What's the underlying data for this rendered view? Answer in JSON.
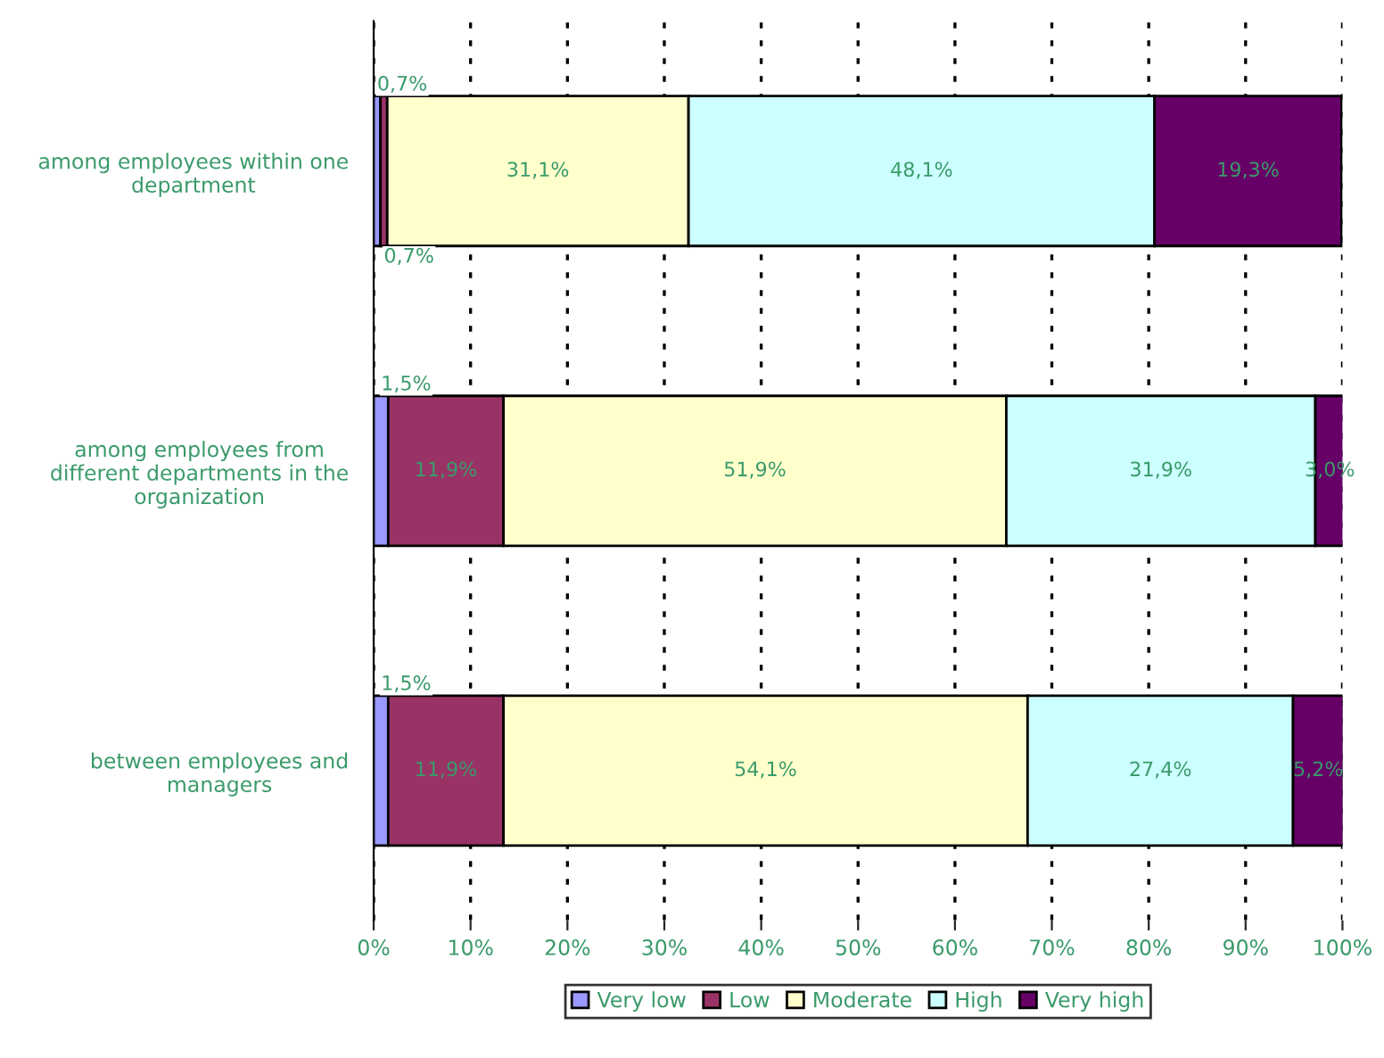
{
  "chart_data": {
    "type": "bar",
    "orientation": "horizontal",
    "stacked": true,
    "categories": [
      "among employees within one\ndepartment",
      "among employees from\ndifferent departments in the\norganization",
      "between employees and\nmanagers"
    ],
    "series": [
      {
        "name": "Very low",
        "color": "#9999ff",
        "values": [
          0.7,
          1.5,
          1.5
        ],
        "value_labels": [
          "0,7%",
          "1,5%",
          "1,5%"
        ]
      },
      {
        "name": "Low",
        "color": "#993366",
        "values": [
          0.7,
          11.9,
          11.9
        ],
        "value_labels": [
          "0,7%",
          "11,9%",
          "11,9%"
        ]
      },
      {
        "name": "Moderate",
        "color": "#ffffcc",
        "values": [
          31.1,
          51.9,
          54.1
        ],
        "value_labels": [
          "31,1%",
          "51,9%",
          "54,1%"
        ]
      },
      {
        "name": "High",
        "color": "#ccffff",
        "values": [
          48.1,
          31.9,
          27.4
        ],
        "value_labels": [
          "48,1%",
          "31,9%",
          "27,4%"
        ]
      },
      {
        "name": "Very high",
        "color": "#660066",
        "values": [
          19.3,
          3.0,
          5.2
        ],
        "value_labels": [
          "19,3%",
          "3,0%",
          "5,2%"
        ]
      }
    ],
    "xlim": [
      0,
      100
    ],
    "xticks": [
      {
        "value": 0,
        "label": "0%"
      },
      {
        "value": 10,
        "label": "10%"
      },
      {
        "value": 20,
        "label": "20%"
      },
      {
        "value": 30,
        "label": "30%"
      },
      {
        "value": 40,
        "label": "40%"
      },
      {
        "value": 50,
        "label": "50%"
      },
      {
        "value": 60,
        "label": "60%"
      },
      {
        "value": 70,
        "label": "70%"
      },
      {
        "value": 80,
        "label": "80%"
      },
      {
        "value": 90,
        "label": "90%"
      },
      {
        "value": 100,
        "label": "100%"
      }
    ],
    "grid": "x",
    "legend": "bottom"
  }
}
